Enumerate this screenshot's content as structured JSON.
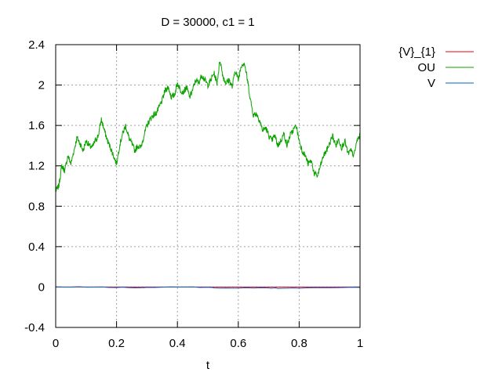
{
  "chart_data": {
    "type": "line",
    "title": "D = 30000, c1 = 1",
    "xlabel": "t",
    "ylabel": "",
    "xlim": [
      0,
      1
    ],
    "ylim": [
      -0.4,
      2.4
    ],
    "xticks": [
      0,
      0.2,
      0.4,
      0.6,
      0.8,
      1
    ],
    "xtick_labels": [
      "0",
      "0.2",
      "0.4",
      "0.6",
      "0.8",
      "1"
    ],
    "yticks": [
      -0.4,
      0,
      0.4,
      0.8,
      1.2,
      1.6,
      2,
      2.4
    ],
    "ytick_labels": [
      "-0.4",
      "0",
      "0.4",
      "0.8",
      "1.2",
      "1.6",
      "2",
      "2.4"
    ],
    "grid": true,
    "legend_position": "top-right-outside",
    "series": [
      {
        "name": "{V}_{1}",
        "color": "#e8000b",
        "x": [
          0,
          1
        ],
        "y": [
          0,
          0
        ]
      },
      {
        "name": "OU",
        "color": "#0ca300",
        "x": [
          0,
          0.01,
          0.02,
          0.03,
          0.04,
          0.05,
          0.06,
          0.07,
          0.08,
          0.09,
          0.1,
          0.11,
          0.12,
          0.13,
          0.14,
          0.15,
          0.16,
          0.17,
          0.18,
          0.19,
          0.2,
          0.21,
          0.22,
          0.23,
          0.24,
          0.25,
          0.26,
          0.27,
          0.28,
          0.29,
          0.3,
          0.31,
          0.32,
          0.33,
          0.34,
          0.35,
          0.36,
          0.37,
          0.38,
          0.39,
          0.4,
          0.41,
          0.42,
          0.43,
          0.44,
          0.45,
          0.46,
          0.47,
          0.48,
          0.49,
          0.5,
          0.51,
          0.52,
          0.53,
          0.54,
          0.55,
          0.56,
          0.57,
          0.58,
          0.59,
          0.6,
          0.61,
          0.62,
          0.63,
          0.64,
          0.65,
          0.66,
          0.67,
          0.68,
          0.69,
          0.7,
          0.71,
          0.72,
          0.73,
          0.74,
          0.75,
          0.76,
          0.77,
          0.78,
          0.79,
          0.8,
          0.81,
          0.82,
          0.83,
          0.84,
          0.85,
          0.86,
          0.87,
          0.88,
          0.89,
          0.9,
          0.91,
          0.92,
          0.93,
          0.94,
          0.95,
          0.96,
          0.97,
          0.98,
          0.99,
          1
        ],
        "y": [
          0.95,
          1.0,
          1.2,
          1.15,
          1.3,
          1.22,
          1.35,
          1.48,
          1.42,
          1.35,
          1.45,
          1.4,
          1.38,
          1.45,
          1.5,
          1.66,
          1.55,
          1.45,
          1.38,
          1.3,
          1.22,
          1.4,
          1.52,
          1.6,
          1.48,
          1.42,
          1.35,
          1.4,
          1.38,
          1.5,
          1.6,
          1.66,
          1.7,
          1.72,
          1.78,
          1.85,
          1.95,
          1.98,
          1.88,
          1.9,
          2.02,
          1.95,
          1.93,
          1.98,
          1.88,
          1.95,
          2.05,
          2.02,
          2.1,
          2.05,
          2.0,
          2.05,
          2.12,
          2.02,
          2.25,
          2.08,
          2.02,
          2.05,
          1.98,
          2.15,
          2.05,
          2.2,
          2.22,
          2.05,
          1.85,
          1.7,
          1.72,
          1.65,
          1.55,
          1.58,
          1.5,
          1.45,
          1.5,
          1.4,
          1.45,
          1.52,
          1.4,
          1.5,
          1.55,
          1.6,
          1.45,
          1.35,
          1.3,
          1.22,
          1.25,
          1.12,
          1.1,
          1.2,
          1.3,
          1.35,
          1.42,
          1.5,
          1.4,
          1.46,
          1.38,
          1.45,
          1.32,
          1.35,
          1.3,
          1.45,
          1.5
        ]
      },
      {
        "name": "V",
        "color": "#0067c7",
        "x": [
          0,
          0.1,
          0.2,
          0.28,
          0.3,
          0.4,
          0.5,
          0.52,
          0.6,
          0.7,
          0.73,
          0.8,
          0.9,
          1
        ],
        "y": [
          0,
          0,
          -0.003,
          -0.008,
          -0.004,
          0,
          -0.002,
          -0.008,
          -0.01,
          -0.008,
          -0.012,
          -0.01,
          -0.008,
          -0.004
        ]
      }
    ]
  }
}
